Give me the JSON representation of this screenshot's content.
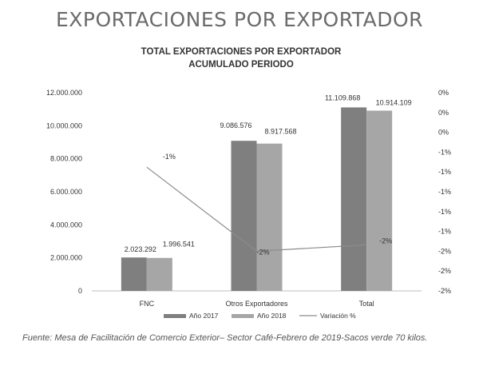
{
  "header": {
    "title": "EXPORTACIONES POR EXPORTADOR"
  },
  "source_note": "Fuente: Mesa de Facilitación de Comercio  Exterior– Sector Café-Febrero de 2019-Sacos verde 70 kilos.",
  "colors": {
    "bar_2017": "#7f7f7f",
    "bar_2018": "#a6a6a6",
    "line": "#8c8c8c",
    "text": "#333333",
    "axis": "#bfbfbf"
  },
  "chart_data": {
    "type": "bar",
    "title": "TOTAL EXPORTACIONES POR EXPORTADOR",
    "subtitle": "ACUMULADO PERIODO",
    "categories": [
      "FNC",
      "Otros Exportadores",
      "Total"
    ],
    "series": [
      {
        "name": "Año 2017",
        "values": [
          2023292,
          9086576,
          11109868
        ],
        "labels": [
          "2.023.292",
          "9.086.576",
          "11.109.868"
        ]
      },
      {
        "name": "Año 2018",
        "values": [
          1996541,
          8917568,
          10914109
        ],
        "labels": [
          "1.996.541",
          "8.917.568",
          "10.914.109"
        ]
      }
    ],
    "line_series": {
      "name": "Variación %",
      "values": [
        -1,
        -2,
        -2
      ],
      "labels": [
        "-1%",
        "-2%",
        "-2%"
      ]
    },
    "ylim": [
      0,
      12000000
    ],
    "yticks": [
      {
        "value": 0,
        "label": "0"
      },
      {
        "value": 2000000,
        "label": "2.000.000"
      },
      {
        "value": 4000000,
        "label": "4.000.000"
      },
      {
        "value": 6000000,
        "label": "6.000.000"
      },
      {
        "value": 8000000,
        "label": "8.000.000"
      },
      {
        "value": 10000000,
        "label": "10.000.000"
      },
      {
        "value": 12000000,
        "label": "12.000.000"
      }
    ],
    "y2ticks": [
      "0%",
      "0%",
      "0%",
      "-1%",
      "-1%",
      "-1%",
      "-1%",
      "-1%",
      "-2%",
      "-2%",
      "-2%"
    ],
    "y2_range": [
      -2.5,
      0
    ],
    "legend_position": "bottom"
  }
}
